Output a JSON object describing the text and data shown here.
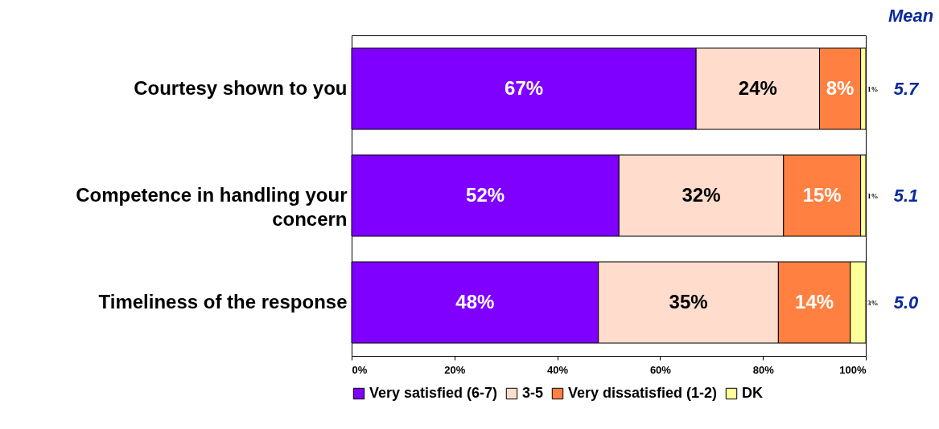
{
  "chart_data": {
    "type": "bar",
    "orientation": "horizontal",
    "stacked": true,
    "legend": "bottom",
    "grid": false,
    "categories": [
      "Courtesy shown to you",
      "Competence in handling your concern",
      "Timeliness of the response"
    ],
    "series": [
      {
        "name": "Very satisfied (6-7)",
        "color": "#7f00ff",
        "values": [
          67,
          52,
          48
        ],
        "value_labels": [
          "67%",
          "52%",
          "48%"
        ]
      },
      {
        "name": "3-5",
        "color": "#ffdccc",
        "values": [
          24,
          32,
          35
        ],
        "value_labels": [
          "24%",
          "32%",
          "35%"
        ]
      },
      {
        "name": "Very dissatisfied (1-2)",
        "color": "#ff8040",
        "values": [
          8,
          15,
          14
        ],
        "value_labels": [
          "8%",
          "15%",
          "14%"
        ]
      },
      {
        "name": "DK",
        "color": "#ffff99",
        "values": [
          1,
          1,
          3
        ],
        "value_labels": [
          "1%",
          "1%",
          "3%"
        ]
      }
    ],
    "xlim": [
      0,
      100
    ],
    "xticks": [
      {
        "value": 0,
        "label": "0%"
      },
      {
        "value": 20,
        "label": "20%"
      },
      {
        "value": 40,
        "label": "40%"
      },
      {
        "value": 60,
        "label": "60%"
      },
      {
        "value": 80,
        "label": "80%"
      },
      {
        "value": 100,
        "label": "100%"
      }
    ],
    "annotations": [
      "Mean",
      "5.7",
      "5.1",
      "5.0"
    ]
  }
}
